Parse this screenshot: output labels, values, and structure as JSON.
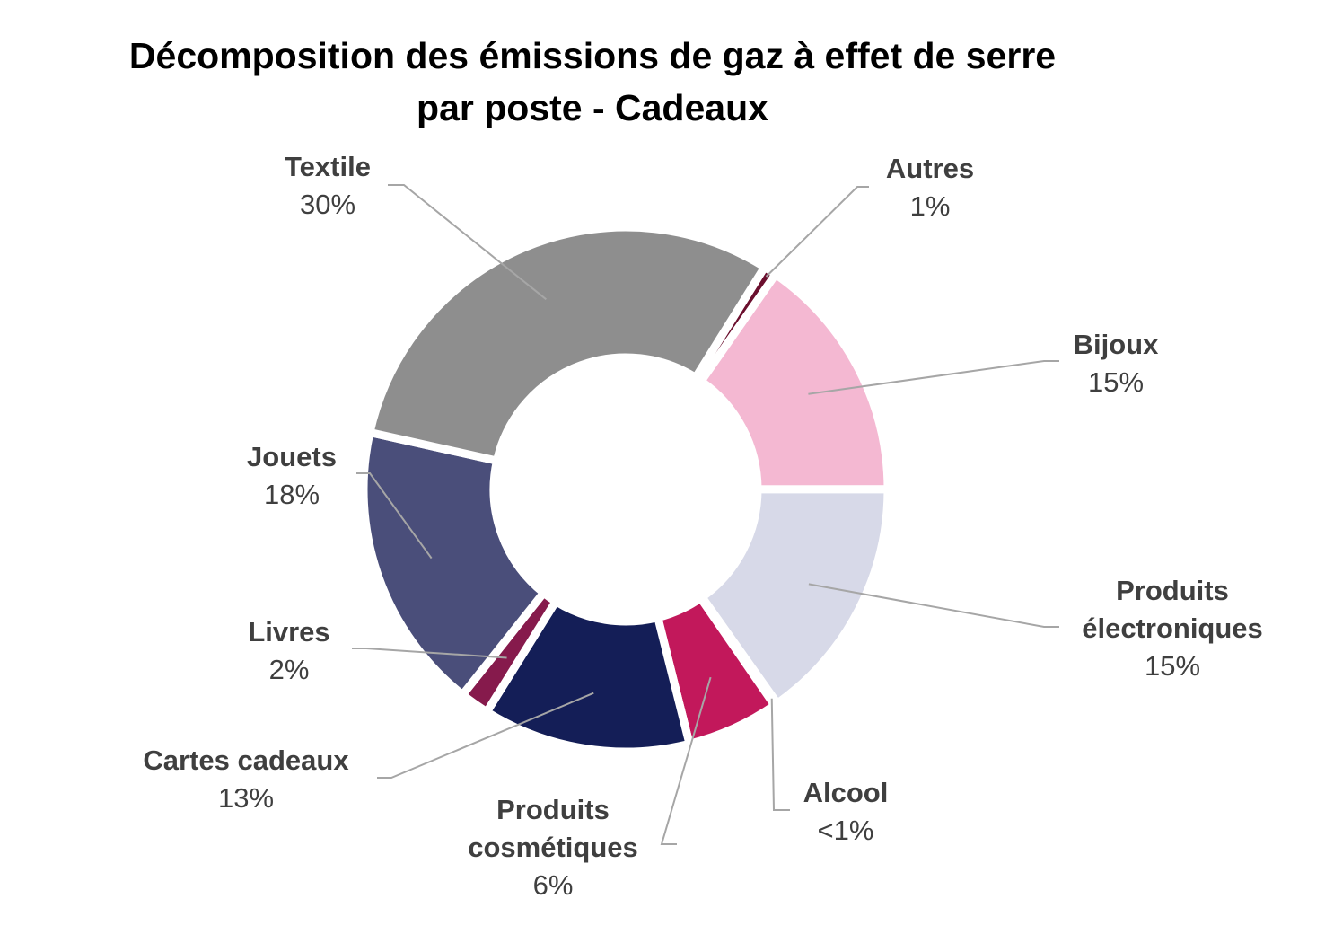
{
  "chart_data": {
    "type": "pie",
    "variant": "donut",
    "title_lines": [
      "Décomposition des émissions de gaz à effet de serre",
      "par poste - Cadeaux"
    ],
    "slices": [
      {
        "name": "Autres",
        "display_lines": [
          "Autres"
        ],
        "value_label": "1%",
        "value": 0.8,
        "color": "#6b0f2e"
      },
      {
        "name": "Bijoux",
        "display_lines": [
          "Bijoux"
        ],
        "value_label": "15%",
        "value": 15.3,
        "color": "#f4b8d2"
      },
      {
        "name": "Produits électroniques",
        "display_lines": [
          "Produits",
          "électroniques"
        ],
        "value_label": "15%",
        "value": 15.2,
        "color": "#d7d9e8"
      },
      {
        "name": "Alcool",
        "display_lines": [
          "Alcool"
        ],
        "value_label": "<1%",
        "value": 0.2,
        "color": "#b01e55"
      },
      {
        "name": "Produits cosmétiques",
        "display_lines": [
          "Produits",
          "cosmétiques"
        ],
        "value_label": "6%",
        "value": 5.7,
        "color": "#c2185b"
      },
      {
        "name": "Cartes cadeaux",
        "display_lines": [
          "Cartes cadeaux"
        ],
        "value_label": "13%",
        "value": 12.8,
        "color": "#141e57"
      },
      {
        "name": "Livres",
        "display_lines": [
          "Livres"
        ],
        "value_label": "2%",
        "value": 1.8,
        "color": "#861a4c"
      },
      {
        "name": "Jouets",
        "display_lines": [
          "Jouets"
        ],
        "value_label": "18%",
        "value": 17.8,
        "color": "#4a4e7a"
      },
      {
        "name": "Textile",
        "display_lines": [
          "Textile"
        ],
        "value_label": "30%",
        "value": 30.4,
        "color": "#8e8e8e"
      }
    ],
    "legend": "none",
    "data_labels": "outside with leader lines"
  }
}
